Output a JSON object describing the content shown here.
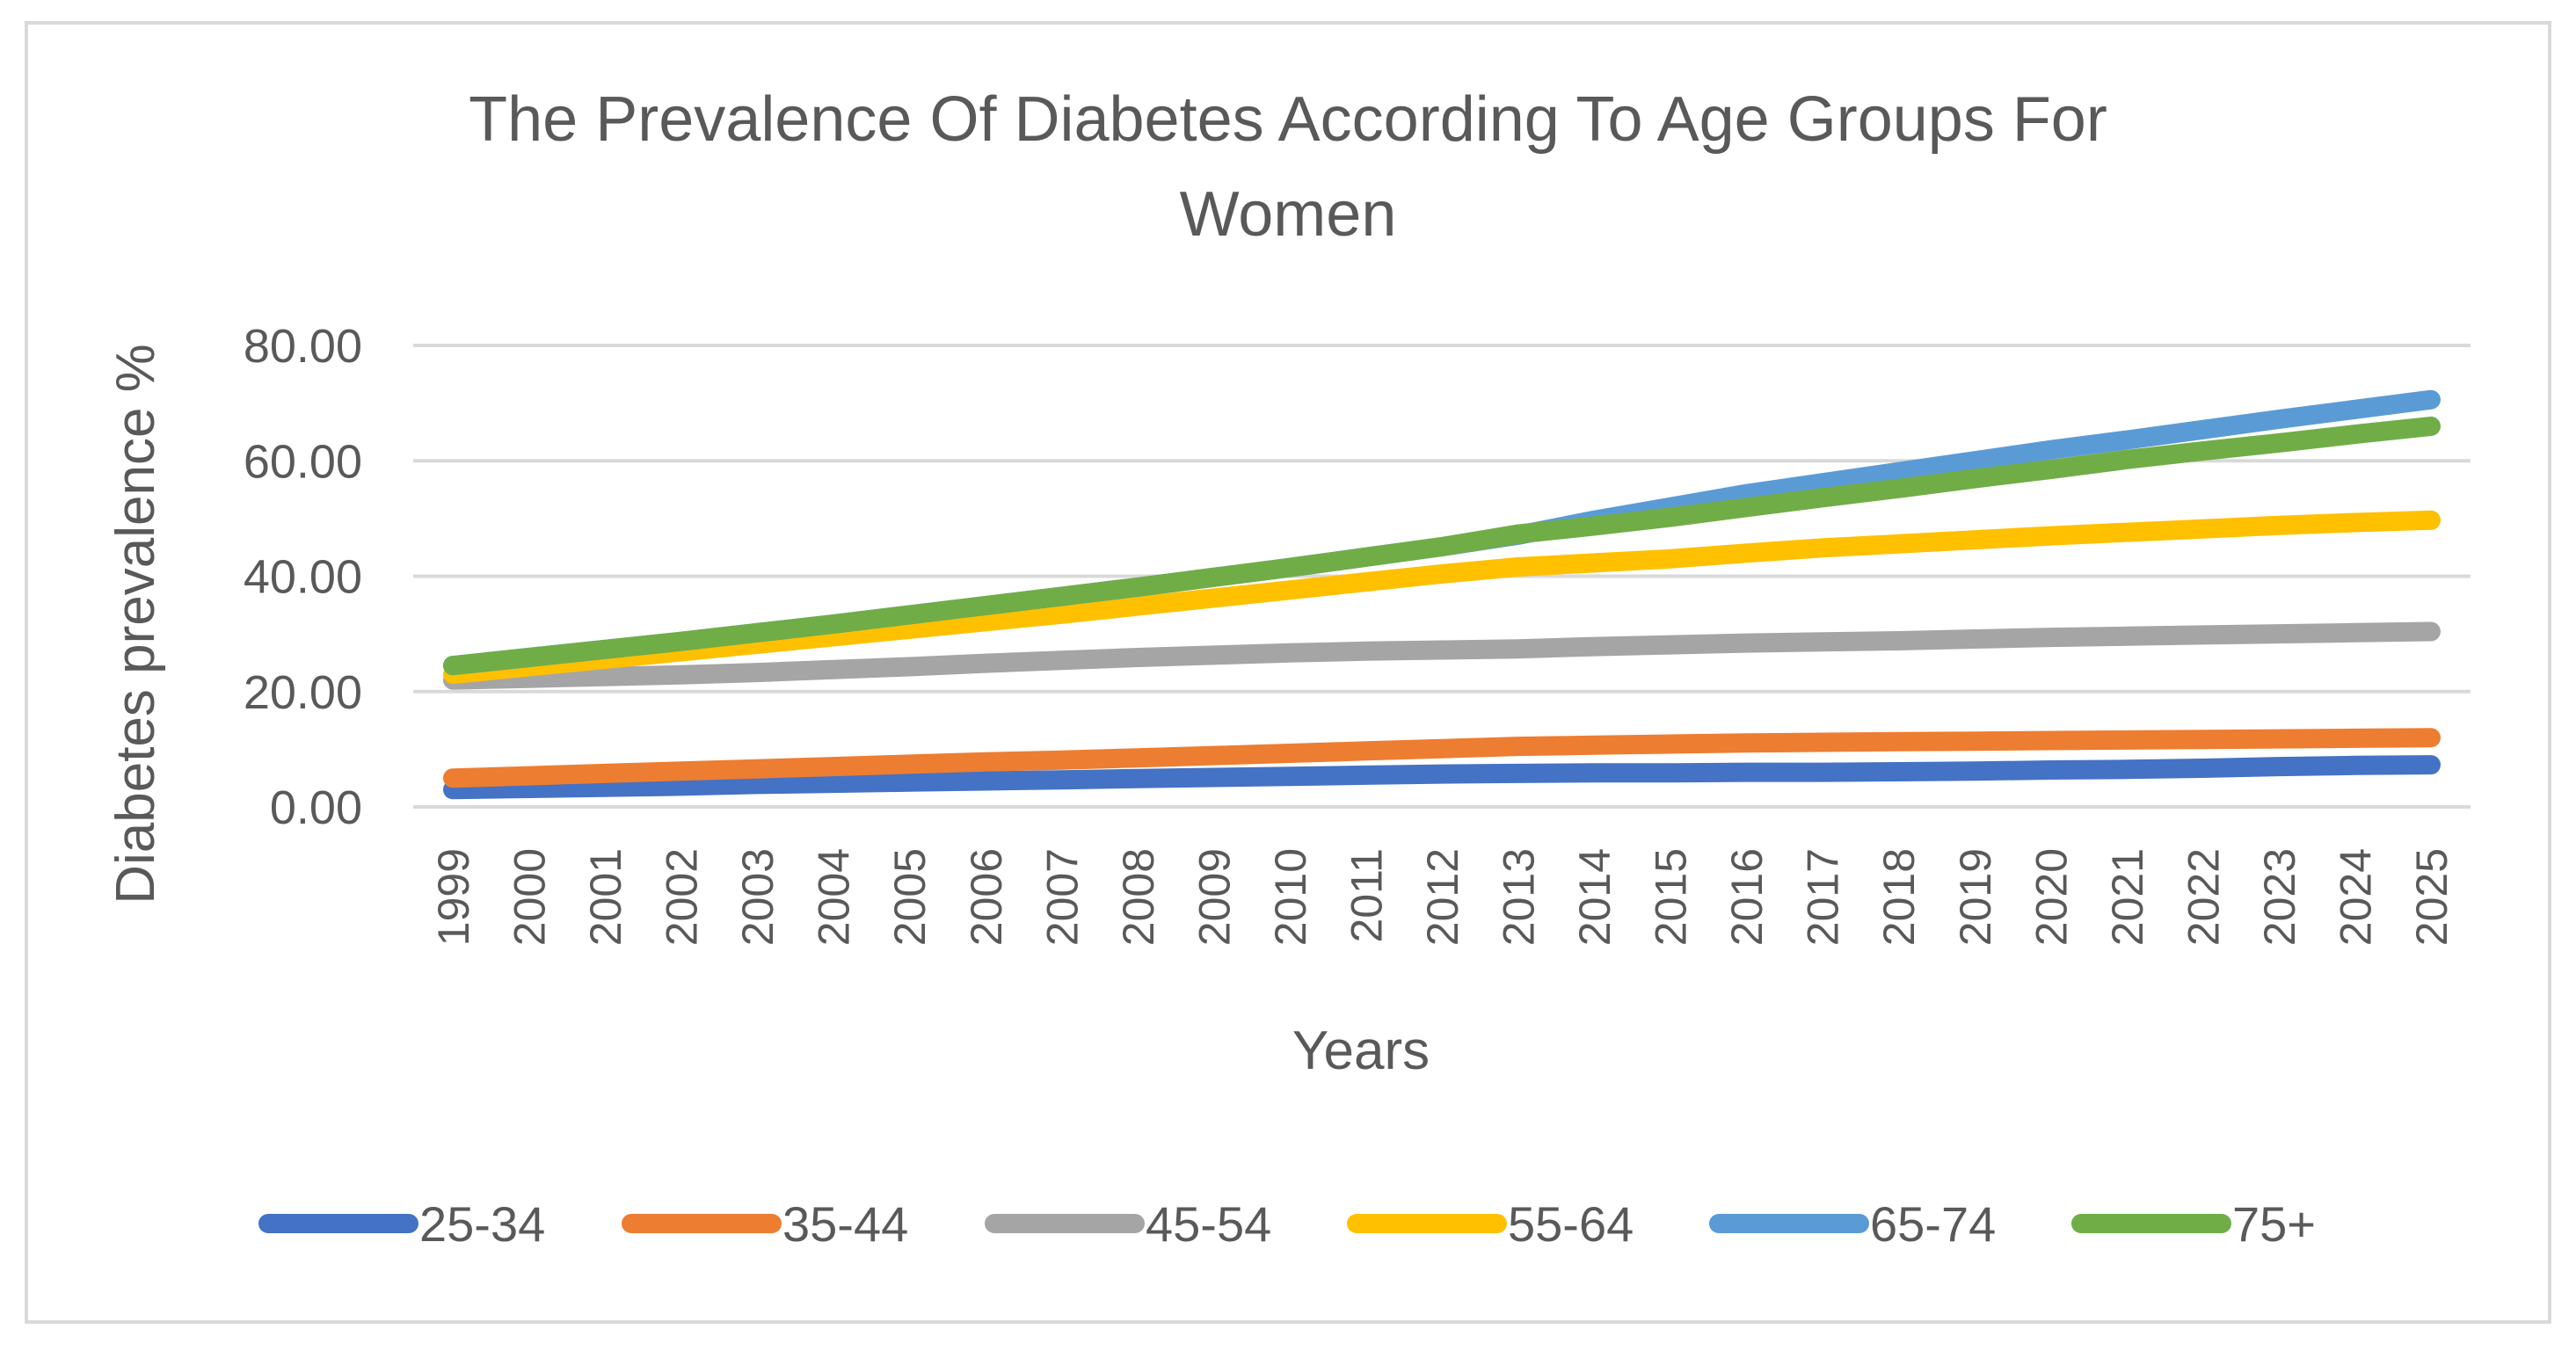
{
  "chart_data": {
    "type": "line",
    "title_lines": [
      "The Prevalence Of Diabetes According To Age Groups For",
      "Women"
    ],
    "xlabel": "Years",
    "ylabel": "Diabetes prevalence %",
    "ylim": [
      0,
      80
    ],
    "yticks": [
      0,
      20,
      40,
      60,
      80
    ],
    "ytick_labels": [
      "0.00",
      "20.00",
      "40.00",
      "60.00",
      "80.00"
    ],
    "grid": true,
    "legend_position": "bottom",
    "categories": [
      "1999",
      "2000",
      "2001",
      "2002",
      "2003",
      "2004",
      "2005",
      "2006",
      "2007",
      "2008",
      "2009",
      "2010",
      "2011",
      "2012",
      "2013",
      "2014",
      "2015",
      "2016",
      "2017",
      "2018",
      "2019",
      "2020",
      "2021",
      "2022",
      "2023",
      "2024",
      "2025"
    ],
    "series": [
      {
        "name": "25-34",
        "color": "#4472C4",
        "values": [
          3.0,
          3.2,
          3.4,
          3.6,
          3.9,
          4.1,
          4.3,
          4.5,
          4.7,
          4.9,
          5.1,
          5.3,
          5.5,
          5.7,
          5.8,
          5.9,
          5.9,
          6.0,
          6.0,
          6.1,
          6.2,
          6.4,
          6.5,
          6.7,
          7.0,
          7.2,
          7.3
        ]
      },
      {
        "name": "35-44",
        "color": "#ED7D31",
        "values": [
          5.0,
          5.4,
          5.8,
          6.2,
          6.6,
          7.0,
          7.4,
          7.8,
          8.1,
          8.5,
          8.9,
          9.3,
          9.7,
          10.1,
          10.5,
          10.7,
          10.9,
          11.1,
          11.2,
          11.3,
          11.4,
          11.5,
          11.6,
          11.7,
          11.8,
          11.9,
          12.0
        ]
      },
      {
        "name": "45-54",
        "color": "#A5A5A5",
        "values": [
          22.0,
          22.3,
          22.6,
          22.9,
          23.3,
          23.8,
          24.3,
          24.9,
          25.4,
          25.9,
          26.3,
          26.7,
          27.0,
          27.2,
          27.4,
          27.8,
          28.1,
          28.4,
          28.6,
          28.8,
          29.1,
          29.4,
          29.6,
          29.8,
          30.0,
          30.2,
          30.4
        ]
      },
      {
        "name": "55-64",
        "color": "#FFC000",
        "values": [
          23.0,
          24.3,
          25.6,
          26.9,
          28.2,
          29.5,
          30.8,
          32.1,
          33.4,
          34.8,
          36.2,
          37.6,
          39.0,
          40.4,
          41.6,
          42.3,
          43.0,
          44.0,
          44.9,
          45.6,
          46.3,
          47.0,
          47.6,
          48.2,
          48.8,
          49.3,
          49.7
        ]
      },
      {
        "name": "65-74",
        "color": "#5B9BD5",
        "values": [
          24.5,
          25.9,
          27.3,
          28.7,
          30.2,
          31.7,
          33.3,
          34.9,
          36.5,
          38.1,
          39.8,
          41.5,
          43.3,
          45.1,
          47.1,
          49.7,
          52.0,
          54.3,
          56.2,
          58.1,
          60.0,
          61.9,
          63.6,
          65.4,
          67.2,
          68.9,
          70.6
        ]
      },
      {
        "name": "75+",
        "color": "#70AD47",
        "values": [
          24.5,
          25.9,
          27.3,
          28.7,
          30.2,
          31.7,
          33.3,
          34.9,
          36.5,
          38.1,
          39.8,
          41.5,
          43.3,
          45.1,
          47.3,
          48.7,
          50.2,
          51.9,
          53.6,
          55.2,
          56.9,
          58.5,
          60.2,
          61.7,
          63.1,
          64.6,
          66.0
        ]
      }
    ]
  }
}
